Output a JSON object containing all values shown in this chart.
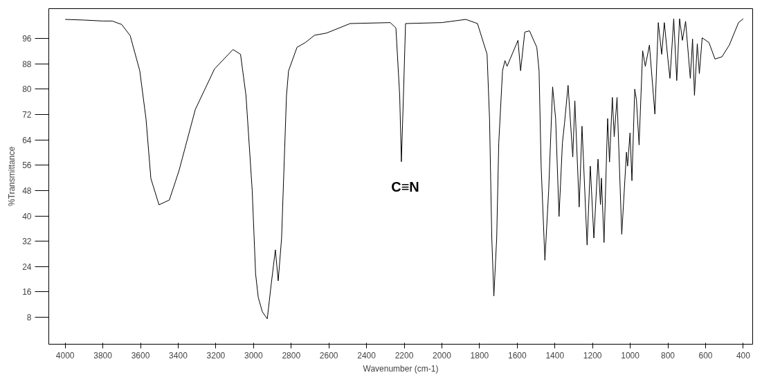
{
  "chart_data": {
    "type": "line",
    "xlabel": "Wavenumber (cm-1)",
    "ylabel": "%Transmittance",
    "xlim": [
      4087,
      350
    ],
    "ylim": [
      -0.5,
      105.4
    ],
    "xticks": [
      4000,
      3800,
      3600,
      3400,
      3200,
      3000,
      2800,
      2600,
      2400,
      2200,
      2000,
      1800,
      1600,
      1400,
      1200,
      1000,
      800,
      600,
      400
    ],
    "yticks": [
      8,
      16,
      24,
      32,
      40,
      48,
      56,
      64,
      72,
      80,
      88,
      96
    ],
    "grid": false,
    "marker": "none",
    "line_style": "solid",
    "annotations": [
      "C≡N"
    ],
    "series": [
      {
        "color": "#000000",
        "x": [
          4000,
          3900,
          3800,
          3750,
          3700,
          3655,
          3604,
          3571,
          3545,
          3502,
          3447,
          3396,
          3309,
          3207,
          3109,
          3069,
          3040,
          3007,
          2989,
          2975,
          2953,
          2927,
          2907,
          2884,
          2869,
          2851,
          2825,
          2814,
          2769,
          2725,
          2676,
          2612,
          2487,
          2274,
          2244,
          2224,
          2215,
          2204,
          2193,
          2000,
          1873,
          1811,
          1760,
          1747,
          1735,
          1724,
          1709,
          1698,
          1678,
          1665,
          1654,
          1596,
          1582,
          1560,
          1535,
          1496,
          1484,
          1473,
          1453,
          1433,
          1412,
          1396,
          1378,
          1360,
          1349,
          1330,
          1305,
          1294,
          1271,
          1256,
          1229,
          1212,
          1193,
          1171,
          1158,
          1153,
          1139,
          1120,
          1110,
          1095,
          1085,
          1070,
          1045,
          1020,
          1014,
          1001,
          991,
          976,
          967,
          953,
          934,
          920,
          898,
          869,
          851,
          833,
          819,
          800,
          789,
          769,
          753,
          738,
          723,
          706,
          681,
          669,
          659,
          644,
          633,
          618,
          582,
          550,
          513,
          474,
          425,
          400
        ],
        "values": [
          102,
          101.8,
          101.5,
          101.5,
          100.4,
          96.9,
          85.8,
          70.7,
          51.8,
          43.5,
          45,
          54.2,
          73.6,
          86.4,
          92.5,
          91,
          78,
          48,
          21.7,
          14.3,
          9.7,
          7.5,
          18,
          29.3,
          19.5,
          33,
          78,
          85.8,
          93.2,
          94.7,
          97,
          97.7,
          100.7,
          101,
          99.3,
          78,
          57.1,
          78,
          100.7,
          101,
          102,
          100.7,
          91,
          70.7,
          33,
          14.7,
          33,
          63,
          85.8,
          89,
          87.2,
          95.4,
          85.8,
          98,
          98.4,
          93.2,
          85.8,
          55.7,
          26,
          48,
          80.7,
          70.7,
          39.8,
          63,
          69.2,
          81.2,
          58.6,
          76.3,
          42.8,
          68.3,
          30.8,
          55.7,
          33,
          57.9,
          43.6,
          51.9,
          31.6,
          70.7,
          57,
          77.4,
          65,
          77.4,
          34.2,
          60.1,
          55.7,
          66.2,
          51.1,
          80,
          76.6,
          62.4,
          92.1,
          87.2,
          93.9,
          72.1,
          101,
          91,
          101,
          89.5,
          83.4,
          102.2,
          82.7,
          102.2,
          95.4,
          101.4,
          83.4,
          95.8,
          78,
          94.3,
          84.9,
          96.2,
          94.7,
          89.5,
          90.2,
          93.9,
          101,
          102.2
        ]
      }
    ]
  }
}
